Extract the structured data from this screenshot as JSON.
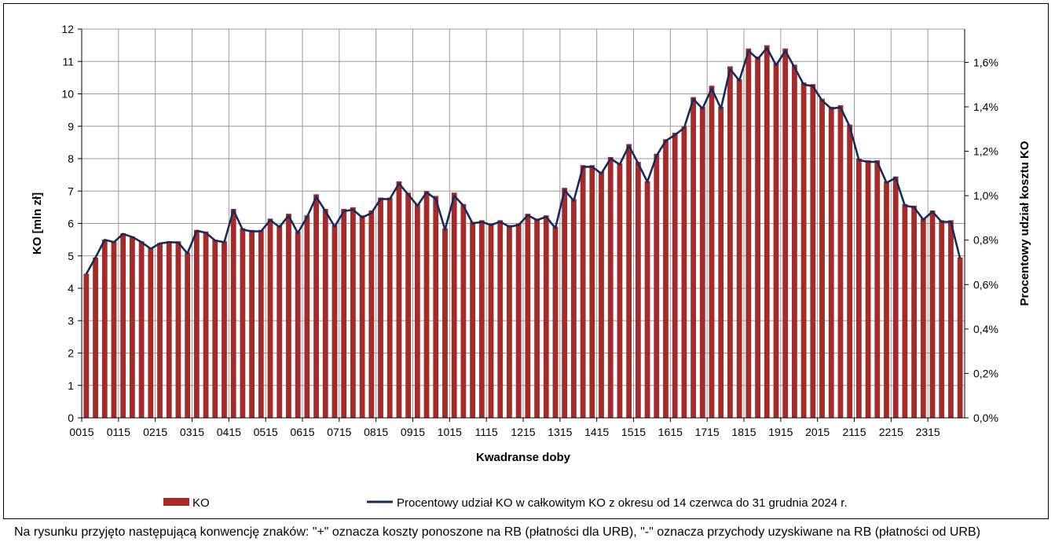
{
  "chart_data": {
    "type": "bar",
    "xlabel": "Kwadranse doby",
    "ylabel": "KO [mln zł]",
    "y2label": "Procentowy udział kosztu KO",
    "ylim": [
      0,
      12
    ],
    "y2lim": [
      0,
      1.75
    ],
    "yticks": [
      "0",
      "1",
      "2",
      "3",
      "4",
      "5",
      "6",
      "7",
      "8",
      "9",
      "10",
      "11",
      "12"
    ],
    "y2ticks": [
      "0,0%",
      "0,2%",
      "0,4%",
      "0,6%",
      "0,8%",
      "1,0%",
      "1,2%",
      "1,4%",
      "1,6%"
    ],
    "xticks": [
      "0015",
      "0115",
      "0215",
      "0315",
      "0415",
      "0515",
      "0615",
      "0715",
      "0815",
      "0915",
      "1015",
      "1115",
      "1215",
      "1315",
      "1415",
      "1515",
      "1615",
      "1715",
      "1815",
      "1915",
      "2015",
      "2115",
      "2215",
      "2315"
    ],
    "grid": true,
    "legend_position": "bottom",
    "colors": {
      "bars": "#a52a2a",
      "line": "#1a2a5a"
    },
    "series": [
      {
        "name": "KO",
        "type": "bar",
        "axis": "left",
        "values": [
          4.45,
          4.95,
          5.5,
          5.45,
          5.7,
          5.6,
          5.45,
          5.25,
          5.4,
          5.45,
          5.45,
          5.1,
          5.8,
          5.75,
          5.5,
          5.45,
          6.45,
          5.85,
          5.8,
          5.8,
          6.15,
          5.95,
          6.3,
          5.75,
          6.25,
          6.9,
          6.45,
          5.95,
          6.45,
          6.5,
          6.25,
          6.4,
          6.8,
          6.8,
          7.3,
          6.95,
          6.6,
          7.0,
          6.85,
          5.85,
          6.95,
          6.6,
          6.05,
          6.1,
          6.0,
          6.1,
          5.95,
          6.0,
          6.3,
          6.15,
          6.25,
          5.9,
          7.1,
          6.75,
          7.8,
          7.8,
          7.6,
          8.05,
          7.85,
          8.45,
          7.9,
          7.3,
          8.15,
          8.6,
          8.8,
          9.0,
          9.9,
          9.6,
          10.25,
          9.6,
          10.85,
          10.45,
          11.4,
          11.15,
          11.5,
          10.95,
          11.4,
          10.9,
          10.35,
          10.3,
          9.85,
          9.6,
          9.65,
          9.05,
          8.0,
          7.95,
          7.95,
          7.3,
          7.45,
          6.6,
          6.55,
          6.15,
          6.4,
          6.1,
          6.1,
          4.95
        ]
      },
      {
        "name": "Procentowy udział KO w całkowitym KO z okresu od 14 czerwca do 31 grudnia 2024 r.",
        "type": "line",
        "axis": "right",
        "values": [
          0.648,
          0.722,
          0.801,
          0.791,
          0.828,
          0.814,
          0.791,
          0.761,
          0.785,
          0.791,
          0.789,
          0.74,
          0.842,
          0.833,
          0.798,
          0.791,
          0.935,
          0.847,
          0.839,
          0.84,
          0.89,
          0.859,
          0.91,
          0.832,
          0.904,
          0.995,
          0.93,
          0.861,
          0.93,
          0.937,
          0.902,
          0.922,
          0.985,
          0.985,
          1.055,
          1.005,
          0.955,
          1.015,
          0.985,
          0.847,
          1.0,
          0.955,
          0.875,
          0.882,
          0.868,
          0.883,
          0.86,
          0.868,
          0.912,
          0.89,
          0.905,
          0.854,
          1.025,
          0.977,
          1.13,
          1.13,
          1.1,
          1.167,
          1.14,
          1.225,
          1.145,
          1.062,
          1.18,
          1.247,
          1.273,
          1.305,
          1.435,
          1.392,
          1.483,
          1.392,
          1.57,
          1.518,
          1.652,
          1.615,
          1.665,
          1.587,
          1.652,
          1.578,
          1.5,
          1.493,
          1.428,
          1.392,
          1.398,
          1.312,
          1.16,
          1.152,
          1.152,
          1.058,
          1.08,
          0.955,
          0.948,
          0.892,
          0.928,
          0.882,
          0.882,
          0.718
        ]
      }
    ],
    "footnote": "Na rysunku przyjęto następującą konwencję znaków: \"+\" oznacza koszty ponoszone na RB (płatności dla URB), \"-\" oznacza przychody uzyskiwane na RB (płatności od URB)"
  }
}
